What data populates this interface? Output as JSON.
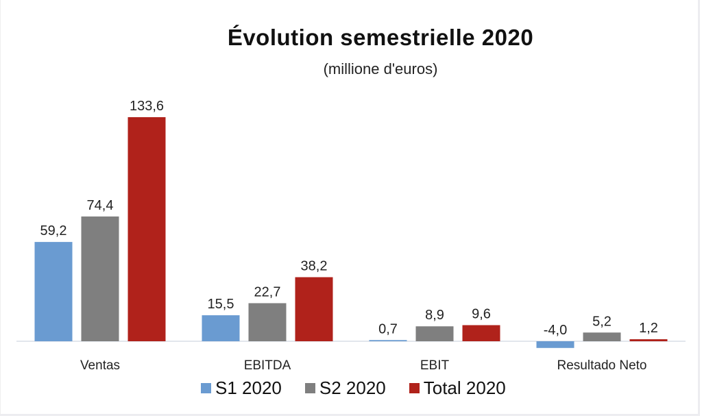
{
  "chart_data": {
    "type": "bar",
    "title": "Évolution semestrielle 2020",
    "subtitle": "(millione d'euros)",
    "xlabel": "",
    "ylabel": "",
    "categories": [
      "Ventas",
      "EBITDA",
      "EBIT",
      "Resultado Neto"
    ],
    "series": [
      {
        "name": "S1 2020",
        "color": "#6a9bd1",
        "values": [
          59.2,
          15.5,
          0.7,
          -4.0
        ],
        "labels": [
          "59,2",
          "15,5",
          "0,7",
          "-4,0"
        ]
      },
      {
        "name": "S2 2020",
        "color": "#7f7f7f",
        "values": [
          74.4,
          22.7,
          8.9,
          5.2
        ],
        "labels": [
          "74,4",
          "22,7",
          "8,9",
          "5,2"
        ]
      },
      {
        "name": "Total 2020",
        "color": "#b0221b",
        "values": [
          133.6,
          38.2,
          9.6,
          1.2
        ],
        "labels": [
          "133,6",
          "38,2",
          "9,6",
          "1,2"
        ]
      }
    ],
    "ylim": [
      -5,
      140
    ],
    "grid": false,
    "legend_position": "bottom"
  }
}
